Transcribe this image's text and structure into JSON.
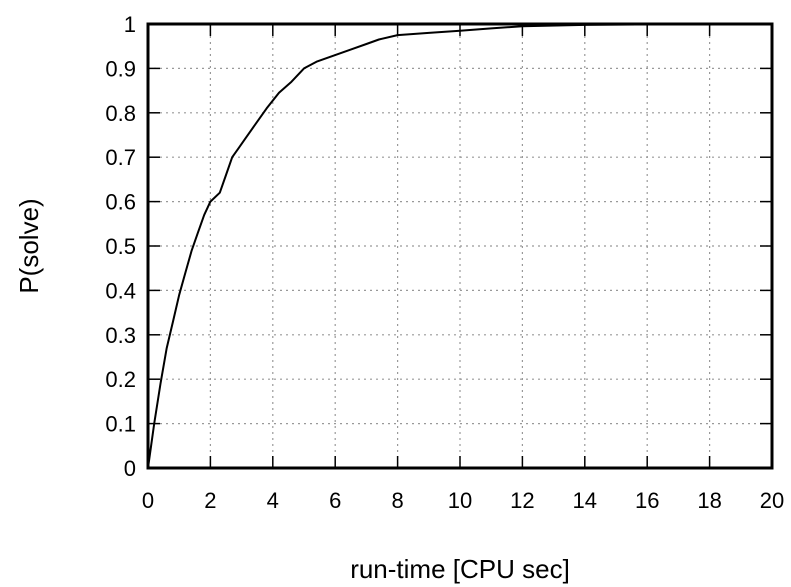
{
  "chart_data": {
    "type": "line",
    "title": "",
    "xlabel": "run-time [CPU sec]",
    "ylabel": "P(solve)",
    "xlim": [
      0,
      20
    ],
    "ylim": [
      0,
      1
    ],
    "grid": true,
    "xticks": [
      0,
      2,
      4,
      6,
      8,
      10,
      12,
      14,
      16,
      18,
      20
    ],
    "yticks": [
      0,
      0.1,
      0.2,
      0.3,
      0.4,
      0.5,
      0.6,
      0.7,
      0.8,
      0.9,
      1
    ],
    "xtick_labels": [
      "0",
      "2",
      "4",
      "6",
      "8",
      "10",
      "12",
      "14",
      "16",
      "18",
      "20"
    ],
    "ytick_labels": [
      "0",
      "0.1",
      "0.2",
      "0.3",
      "0.4",
      "0.5",
      "0.6",
      "0.7",
      "0.8",
      "0.9",
      "1"
    ],
    "series": [
      {
        "color": "#000000",
        "x": [
          0,
          0.1,
          0.2,
          0.4,
          0.6,
          0.8,
          1.0,
          1.2,
          1.4,
          1.6,
          1.8,
          2.0,
          2.3,
          2.5,
          2.7,
          2.9,
          3.1,
          3.4,
          3.8,
          4.2,
          4.6,
          5.0,
          5.4,
          6.0,
          6.6,
          7.0,
          7.4,
          8.0,
          9.0,
          10.0,
          11.0,
          12.0,
          14.0,
          16.0,
          20.0
        ],
        "y": [
          0,
          0.05,
          0.1,
          0.19,
          0.27,
          0.33,
          0.39,
          0.44,
          0.49,
          0.53,
          0.57,
          0.6,
          0.62,
          0.66,
          0.7,
          0.72,
          0.74,
          0.77,
          0.81,
          0.845,
          0.87,
          0.9,
          0.915,
          0.93,
          0.945,
          0.955,
          0.965,
          0.975,
          0.98,
          0.985,
          0.99,
          0.995,
          0.998,
          0.999,
          1.0
        ]
      }
    ]
  }
}
